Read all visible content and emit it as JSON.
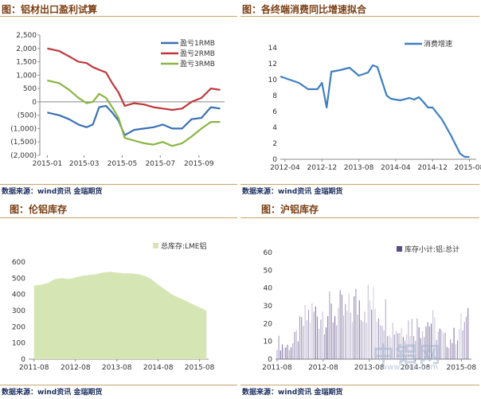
{
  "panels": [
    {
      "title": "图：铝材出口盈利试算",
      "source": "数据来源：wind资讯 金瑞期货",
      "chart_data": {
        "type": "line",
        "x_ticks": [
          "2015-01",
          "2015-03",
          "2015-05",
          "2015-07",
          "2015-09"
        ],
        "ylim": [
          -2000,
          2500
        ],
        "y_ticks": [
          2500,
          2000,
          1500,
          1000,
          500,
          0,
          -500,
          -1000,
          -1500,
          -2000
        ],
        "y_tick_labels": [
          "2,500",
          "2,000",
          "1,500",
          "1,000",
          "500",
          "0",
          "(500)",
          "(1,000)",
          "(1,500)",
          "(2,000)"
        ],
        "legend_position": "top-right",
        "series": [
          {
            "name": "盈亏1RMB",
            "color": "#3a6fb5",
            "x": [
              "2015-01-01",
              "2015-01-20",
              "2015-02-05",
              "2015-02-20",
              "2015-03-05",
              "2015-03-15",
              "2015-03-25",
              "2015-04-05",
              "2015-04-15",
              "2015-04-25",
              "2015-05-05",
              "2015-05-20",
              "2015-06-05",
              "2015-06-20",
              "2015-07-05",
              "2015-07-20",
              "2015-08-05",
              "2015-08-20",
              "2015-09-05",
              "2015-09-20",
              "2015-10-05"
            ],
            "values": [
              -400,
              -500,
              -650,
              -850,
              -950,
              -850,
              -200,
              -150,
              -400,
              -700,
              -1250,
              -1050,
              -1000,
              -950,
              -850,
              -1000,
              -1000,
              -650,
              -600,
              -200,
              -250
            ]
          },
          {
            "name": "盈亏2RMB",
            "color": "#c0373b",
            "x": [
              "2015-01-01",
              "2015-01-20",
              "2015-02-05",
              "2015-02-20",
              "2015-03-05",
              "2015-03-15",
              "2015-03-25",
              "2015-04-05",
              "2015-04-15",
              "2015-04-25",
              "2015-05-05",
              "2015-05-20",
              "2015-06-05",
              "2015-06-20",
              "2015-07-05",
              "2015-07-20",
              "2015-08-05",
              "2015-08-20",
              "2015-09-05",
              "2015-09-20",
              "2015-10-05"
            ],
            "values": [
              2000,
              1900,
              1700,
              1500,
              1450,
              1300,
              1200,
              1100,
              700,
              350,
              -150,
              -50,
              -100,
              -200,
              -250,
              -300,
              -250,
              0,
              150,
              500,
              450
            ]
          },
          {
            "name": "盈亏3RMB",
            "color": "#8ab543",
            "x": [
              "2015-01-01",
              "2015-01-20",
              "2015-02-05",
              "2015-02-20",
              "2015-03-05",
              "2015-03-15",
              "2015-03-25",
              "2015-04-05",
              "2015-04-15",
              "2015-04-25",
              "2015-05-05",
              "2015-05-20",
              "2015-06-05",
              "2015-06-20",
              "2015-07-05",
              "2015-07-20",
              "2015-08-05",
              "2015-08-20",
              "2015-09-05",
              "2015-09-20",
              "2015-10-05"
            ],
            "values": [
              800,
              700,
              450,
              150,
              -50,
              0,
              300,
              150,
              -200,
              -600,
              -1350,
              -1450,
              -1550,
              -1600,
              -1500,
              -1650,
              -1550,
              -1300,
              -1000,
              -750,
              -750
            ]
          }
        ]
      }
    },
    {
      "title": "图：各终端消费同比增速拟合",
      "source": "数据来源：wind资讯 金瑞期货",
      "chart_data": {
        "type": "line",
        "x_ticks": [
          "2012-04",
          "2012-12",
          "2013-08",
          "2014-04",
          "2014-12",
          "2015-08"
        ],
        "ylim": [
          0,
          14
        ],
        "y_ticks": [
          0,
          2,
          4,
          6,
          8,
          10,
          12,
          14
        ],
        "legend_position": "top-right",
        "series": [
          {
            "name": "消费增速",
            "color": "#3f7fbf",
            "x": [
              "2012-03",
              "2012-05",
              "2012-07",
              "2012-09",
              "2012-11",
              "2012-12",
              "2013-01",
              "2013-02",
              "2013-04",
              "2013-06",
              "2013-08",
              "2013-10",
              "2013-11",
              "2013-12",
              "2014-01",
              "2014-02",
              "2014-03",
              "2014-05",
              "2014-07",
              "2014-08",
              "2014-09",
              "2014-10",
              "2014-11",
              "2014-12",
              "2015-02",
              "2015-04",
              "2015-06",
              "2015-07",
              "2015-08"
            ],
            "values": [
              10.4,
              10.0,
              9.6,
              8.8,
              8.8,
              9.6,
              6.5,
              11.0,
              11.2,
              11.5,
              10.5,
              10.9,
              11.8,
              11.6,
              9.8,
              8.0,
              7.6,
              7.4,
              7.7,
              7.5,
              7.8,
              7.2,
              6.5,
              6.5,
              5.0,
              3.0,
              0.7,
              0.3,
              0.3
            ]
          }
        ]
      }
    },
    {
      "title": "图：伦铝库存",
      "source": "数据来源：wind资讯 金瑞期货",
      "chart_data": {
        "type": "area",
        "x_ticks": [
          "2011-08",
          "2012-08",
          "2013-08",
          "2014-08",
          "2015-08"
        ],
        "ylim": [
          0,
          600
        ],
        "y_ticks": [
          0,
          100,
          200,
          300,
          400,
          500,
          600
        ],
        "legend_position": "top-right",
        "series": [
          {
            "name": "总库存:LME铝",
            "color": "#d5e6b4",
            "x": [
              "2011-08",
              "2011-10",
              "2011-12",
              "2012-02",
              "2012-04",
              "2012-06",
              "2012-08",
              "2012-10",
              "2012-12",
              "2013-02",
              "2013-04",
              "2013-06",
              "2013-08",
              "2013-10",
              "2013-12",
              "2014-02",
              "2014-04",
              "2014-06",
              "2014-08",
              "2014-10",
              "2014-12",
              "2015-02",
              "2015-04",
              "2015-06",
              "2015-08",
              "2015-10"
            ],
            "values": [
              455,
              460,
              470,
              495,
              500,
              495,
              505,
              515,
              520,
              525,
              535,
              540,
              535,
              530,
              530,
              525,
              515,
              495,
              460,
              430,
              400,
              380,
              360,
              340,
              320,
              300
            ]
          }
        ]
      }
    },
    {
      "title": "图：沪铝库存",
      "source": "数据来源：wind资讯 金瑞期货",
      "watermark": "中铝网",
      "watermark_url": "www.cnal.com",
      "chart_data": {
        "type": "bar",
        "x_ticks": [
          "2011-08",
          "2012-08",
          "2013-08",
          "2014-08",
          "2015-08"
        ],
        "ylim": [
          0,
          60
        ],
        "y_ticks": [
          0,
          10,
          20,
          30,
          40,
          50,
          60
        ],
        "legend_position": "top-right",
        "series": [
          {
            "name": "库存小计:铝:总计",
            "color": "#5b4a86",
            "x": [
              "2011-08",
              "2011-10",
              "2011-12",
              "2012-02",
              "2012-04",
              "2012-06",
              "2012-08",
              "2012-10",
              "2012-12",
              "2013-02",
              "2013-04",
              "2013-06",
              "2013-08",
              "2013-10",
              "2013-12",
              "2014-02",
              "2014-04",
              "2014-06",
              "2014-08",
              "2014-10",
              "2014-12",
              "2015-02",
              "2015-04",
              "2015-06",
              "2015-08",
              "2015-10"
            ],
            "values": [
              15,
              10,
              12,
              25,
              36,
              38,
              40,
              38,
              40,
              36,
              44,
              50,
              47,
              42,
              40,
              28,
              25,
              30,
              27,
              30,
              32,
              22,
              15,
              18,
              28,
              30
            ]
          }
        ]
      }
    }
  ]
}
